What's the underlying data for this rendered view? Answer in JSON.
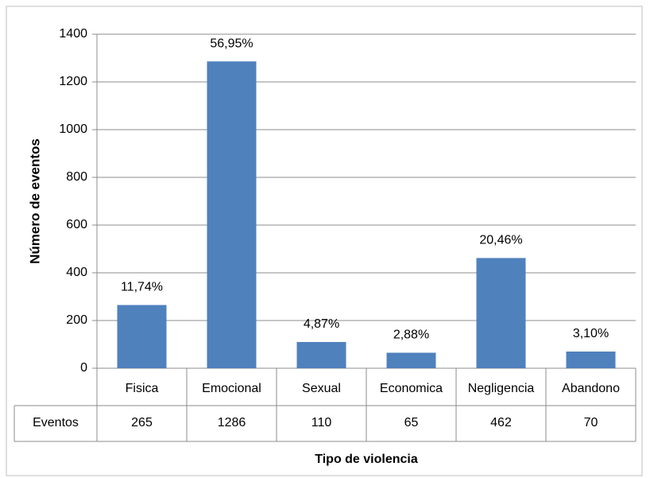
{
  "chart_data": {
    "type": "bar",
    "x_label": "Tipo de violencia",
    "y_label": "Número de eventos",
    "categories": [
      "Fisica",
      "Emocional",
      "Sexual",
      "Economica",
      "Negligencia",
      "Abandono"
    ],
    "values": [
      265,
      1286,
      110,
      65,
      462,
      70
    ],
    "percents": [
      11.74,
      56.95,
      4.87,
      2.88,
      20.46,
      3.1
    ],
    "percent_labels": [
      "11,74%",
      "56,95%",
      "4,87%",
      "2,88%",
      "20,46%",
      "3,10%"
    ],
    "table_row_header": "Eventos",
    "color": "#4f81bd",
    "ylim": [
      0,
      1400
    ],
    "yticks": [
      0,
      200,
      400,
      600,
      800,
      1000,
      1200,
      1400
    ],
    "grid": true
  }
}
